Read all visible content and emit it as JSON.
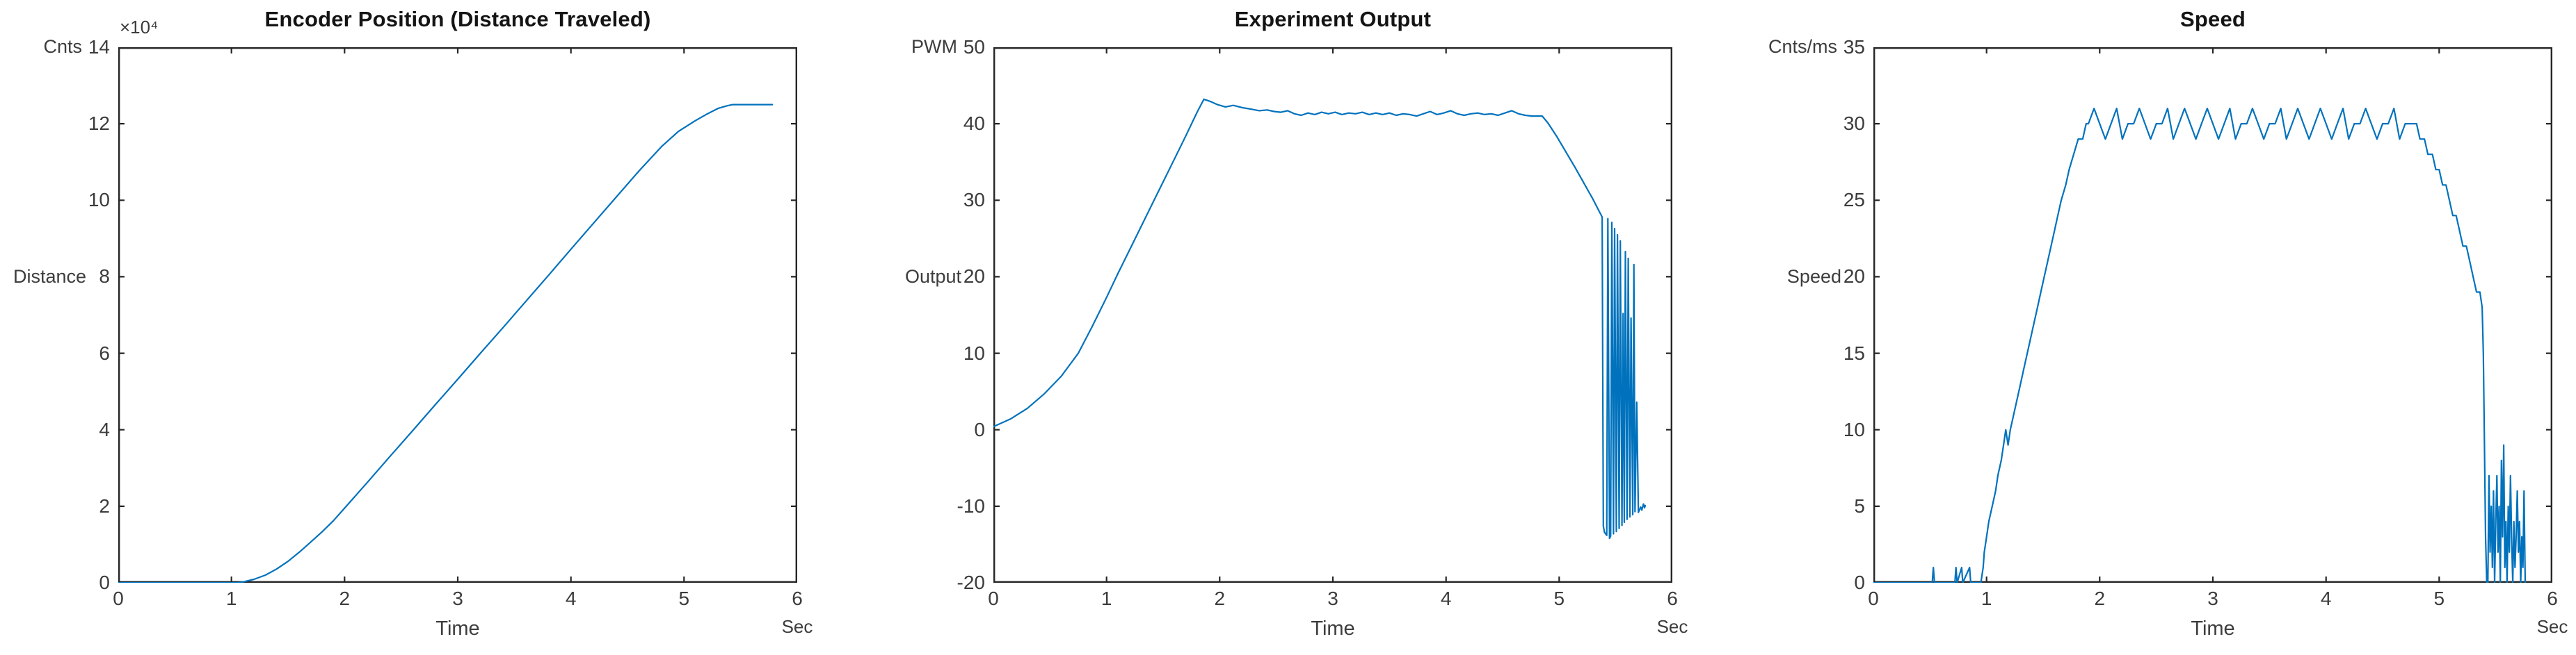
{
  "style": {
    "background": "#ffffff",
    "axis_color": "#262626",
    "tick_text_color": "#3c3c3c",
    "label_text_color": "#3d3d3d",
    "title_color": "#141414",
    "line_color": "#0072BD"
  },
  "chart_data": [
    {
      "type": "line",
      "title": "Encoder Position (Distance Traveled)",
      "y_unit_label": "Cnts",
      "y_axis_label": "Distance",
      "x_axis_label": "Time",
      "x_unit_label": "Sec",
      "exponent_label": "×10⁴",
      "line_color": "#0072BD",
      "xlim": [
        0,
        6
      ],
      "ylim": [
        0,
        14
      ],
      "x_ticks": [
        0,
        1,
        2,
        3,
        4,
        5,
        6
      ],
      "y_ticks": [
        0,
        2,
        4,
        6,
        8,
        10,
        12,
        14
      ],
      "grid": false,
      "y_values_unit": "counts x 10^4",
      "points": [
        [
          0,
          0
        ],
        [
          1.05,
          0
        ],
        [
          1.1,
          0.02
        ],
        [
          1.2,
          0.09
        ],
        [
          1.3,
          0.2
        ],
        [
          1.4,
          0.36
        ],
        [
          1.5,
          0.56
        ],
        [
          1.6,
          0.8
        ],
        [
          1.7,
          1.06
        ],
        [
          1.8,
          1.33
        ],
        [
          1.9,
          1.62
        ],
        [
          2,
          1.95
        ],
        [
          2.2,
          2.62
        ],
        [
          2.4,
          3.3
        ],
        [
          2.6,
          3.97
        ],
        [
          2.8,
          4.65
        ],
        [
          3,
          5.32
        ],
        [
          3.2,
          6
        ],
        [
          3.4,
          6.67
        ],
        [
          3.6,
          7.35
        ],
        [
          3.8,
          8.03
        ],
        [
          4,
          8.72
        ],
        [
          4.2,
          9.4
        ],
        [
          4.4,
          10.08
        ],
        [
          4.6,
          10.76
        ],
        [
          4.8,
          11.4
        ],
        [
          4.95,
          11.8
        ],
        [
          5.1,
          12.08
        ],
        [
          5.2,
          12.25
        ],
        [
          5.3,
          12.4
        ],
        [
          5.38,
          12.47
        ],
        [
          5.43,
          12.5
        ],
        [
          5.78,
          12.5
        ]
      ]
    },
    {
      "type": "line",
      "title": "Experiment Output",
      "y_unit_label": "PWM",
      "y_axis_label": "Output",
      "x_axis_label": "Time",
      "x_unit_label": "Sec",
      "exponent_label": "",
      "line_color": "#0072BD",
      "xlim": [
        0,
        6
      ],
      "ylim": [
        -20,
        50
      ],
      "x_ticks": [
        0,
        1,
        2,
        3,
        4,
        5,
        6
      ],
      "y_ticks": [
        -20,
        -10,
        0,
        10,
        20,
        30,
        40,
        50
      ],
      "grid": false,
      "points": [
        [
          0,
          0.4
        ],
        [
          0.15,
          1.4
        ],
        [
          0.3,
          2.8
        ],
        [
          0.45,
          4.7
        ],
        [
          0.6,
          7
        ],
        [
          0.75,
          10
        ],
        [
          0.87,
          13.4
        ],
        [
          1,
          17.3
        ],
        [
          1.1,
          20.4
        ],
        [
          1.2,
          23.4
        ],
        [
          1.3,
          26.4
        ],
        [
          1.4,
          29.4
        ],
        [
          1.5,
          32.4
        ],
        [
          1.6,
          35.4
        ],
        [
          1.7,
          38.4
        ],
        [
          1.8,
          41.5
        ],
        [
          1.86,
          43.2
        ],
        [
          1.92,
          42.9
        ],
        [
          1.98,
          42.5
        ],
        [
          2.05,
          42.2
        ],
        [
          2.12,
          42.4
        ],
        [
          2.2,
          42.1
        ],
        [
          2.28,
          41.9
        ],
        [
          2.35,
          41.7
        ],
        [
          2.42,
          41.8
        ],
        [
          2.48,
          41.6
        ],
        [
          2.54,
          41.5
        ],
        [
          2.6,
          41.7
        ],
        [
          2.66,
          41.3
        ],
        [
          2.72,
          41.1
        ],
        [
          2.78,
          41.4
        ],
        [
          2.84,
          41.2
        ],
        [
          2.9,
          41.5
        ],
        [
          2.96,
          41.3
        ],
        [
          3.02,
          41.5
        ],
        [
          3.08,
          41.2
        ],
        [
          3.14,
          41.4
        ],
        [
          3.2,
          41.3
        ],
        [
          3.26,
          41.5
        ],
        [
          3.32,
          41.2
        ],
        [
          3.38,
          41.4
        ],
        [
          3.44,
          41.2
        ],
        [
          3.5,
          41.4
        ],
        [
          3.56,
          41.1
        ],
        [
          3.62,
          41.3
        ],
        [
          3.68,
          41.2
        ],
        [
          3.74,
          41
        ],
        [
          3.8,
          41.3
        ],
        [
          3.86,
          41.6
        ],
        [
          3.92,
          41.2
        ],
        [
          3.98,
          41.4
        ],
        [
          4.04,
          41.7
        ],
        [
          4.1,
          41.3
        ],
        [
          4.16,
          41.1
        ],
        [
          4.22,
          41.3
        ],
        [
          4.28,
          41.4
        ],
        [
          4.34,
          41.2
        ],
        [
          4.4,
          41.3
        ],
        [
          4.46,
          41.1
        ],
        [
          4.52,
          41.4
        ],
        [
          4.58,
          41.7
        ],
        [
          4.64,
          41.3
        ],
        [
          4.7,
          41.1
        ],
        [
          4.76,
          41
        ],
        [
          4.85,
          41
        ],
        [
          4.9,
          40.1
        ],
        [
          4.98,
          38.3
        ],
        [
          5.06,
          36.3
        ],
        [
          5.14,
          34.3
        ],
        [
          5.22,
          32.2
        ],
        [
          5.3,
          30.1
        ],
        [
          5.38,
          27.8
        ],
        [
          5.39,
          -12.6
        ],
        [
          5.4,
          -13.4
        ],
        [
          5.42,
          -13.8
        ],
        [
          5.43,
          27.6
        ],
        [
          5.445,
          -14.2
        ],
        [
          5.455,
          -13.9
        ],
        [
          5.465,
          27.1
        ],
        [
          5.48,
          -13.6
        ],
        [
          5.49,
          26.3
        ],
        [
          5.505,
          -13.3
        ],
        [
          5.515,
          25.5
        ],
        [
          5.53,
          -12.9
        ],
        [
          5.54,
          24.7
        ],
        [
          5.555,
          -12.5
        ],
        [
          5.565,
          15.2
        ],
        [
          5.575,
          -12.1
        ],
        [
          5.585,
          23.3
        ],
        [
          5.6,
          -11.7
        ],
        [
          5.61,
          22.4
        ],
        [
          5.625,
          -11.4
        ],
        [
          5.635,
          14.6
        ],
        [
          5.65,
          -11.1
        ],
        [
          5.66,
          21.6
        ],
        [
          5.67,
          -10.7
        ],
        [
          5.685,
          3.6
        ],
        [
          5.7,
          -10.8
        ],
        [
          5.72,
          -10.1
        ],
        [
          5.73,
          -10.5
        ],
        [
          5.745,
          -9.7
        ],
        [
          5.755,
          -10.2
        ],
        [
          5.76,
          -9.9
        ]
      ]
    },
    {
      "type": "line",
      "title": "Speed",
      "y_unit_label": "Cnts/ms",
      "y_axis_label": "Speed",
      "x_axis_label": "Time",
      "x_unit_label": "Sec",
      "exponent_label": "",
      "line_color": "#0072BD",
      "xlim": [
        0,
        6
      ],
      "ylim": [
        0,
        35
      ],
      "x_ticks": [
        0,
        1,
        2,
        3,
        4,
        5,
        6
      ],
      "y_ticks": [
        0,
        5,
        10,
        15,
        20,
        25,
        30,
        35
      ],
      "grid": false,
      "points": [
        [
          0,
          0
        ],
        [
          0.52,
          0
        ],
        [
          0.53,
          1
        ],
        [
          0.54,
          0
        ],
        [
          0.6,
          0
        ],
        [
          0.72,
          0
        ],
        [
          0.73,
          1
        ],
        [
          0.74,
          0
        ],
        [
          0.78,
          1
        ],
        [
          0.79,
          0
        ],
        [
          0.85,
          1
        ],
        [
          0.86,
          0
        ],
        [
          0.95,
          0
        ],
        [
          0.97,
          1
        ],
        [
          0.98,
          2
        ],
        [
          1,
          3
        ],
        [
          1.02,
          4
        ],
        [
          1.05,
          5
        ],
        [
          1.08,
          6
        ],
        [
          1.1,
          7
        ],
        [
          1.13,
          8
        ],
        [
          1.15,
          9
        ],
        [
          1.17,
          10
        ],
        [
          1.19,
          9
        ],
        [
          1.21,
          10
        ],
        [
          1.24,
          11
        ],
        [
          1.27,
          12
        ],
        [
          1.3,
          13
        ],
        [
          1.33,
          14
        ],
        [
          1.36,
          15
        ],
        [
          1.39,
          16
        ],
        [
          1.42,
          17
        ],
        [
          1.45,
          18
        ],
        [
          1.48,
          19
        ],
        [
          1.51,
          20
        ],
        [
          1.54,
          21
        ],
        [
          1.57,
          22
        ],
        [
          1.6,
          23
        ],
        [
          1.63,
          24
        ],
        [
          1.66,
          25
        ],
        [
          1.7,
          26
        ],
        [
          1.73,
          27
        ],
        [
          1.77,
          28
        ],
        [
          1.81,
          29
        ],
        [
          1.85,
          29
        ],
        [
          1.88,
          30
        ],
        [
          1.9,
          30
        ],
        [
          1.95,
          31
        ],
        [
          2,
          30
        ],
        [
          2.05,
          29
        ],
        [
          2.1,
          30
        ],
        [
          2.15,
          31
        ],
        [
          2.2,
          29
        ],
        [
          2.25,
          30
        ],
        [
          2.3,
          30
        ],
        [
          2.35,
          31
        ],
        [
          2.4,
          30
        ],
        [
          2.45,
          29
        ],
        [
          2.5,
          30
        ],
        [
          2.55,
          30
        ],
        [
          2.6,
          31
        ],
        [
          2.65,
          29
        ],
        [
          2.7,
          30
        ],
        [
          2.75,
          31
        ],
        [
          2.8,
          30
        ],
        [
          2.85,
          29
        ],
        [
          2.9,
          30
        ],
        [
          2.95,
          31
        ],
        [
          3,
          30
        ],
        [
          3.05,
          29
        ],
        [
          3.1,
          30
        ],
        [
          3.15,
          31
        ],
        [
          3.2,
          29
        ],
        [
          3.25,
          30
        ],
        [
          3.3,
          30
        ],
        [
          3.35,
          31
        ],
        [
          3.4,
          30
        ],
        [
          3.45,
          29
        ],
        [
          3.5,
          30
        ],
        [
          3.55,
          30
        ],
        [
          3.6,
          31
        ],
        [
          3.65,
          29
        ],
        [
          3.7,
          30
        ],
        [
          3.75,
          31
        ],
        [
          3.8,
          30
        ],
        [
          3.85,
          29
        ],
        [
          3.9,
          30
        ],
        [
          3.95,
          31
        ],
        [
          4,
          30
        ],
        [
          4.05,
          29
        ],
        [
          4.1,
          30
        ],
        [
          4.15,
          31
        ],
        [
          4.2,
          29
        ],
        [
          4.25,
          30
        ],
        [
          4.3,
          30
        ],
        [
          4.35,
          31
        ],
        [
          4.4,
          30
        ],
        [
          4.45,
          29
        ],
        [
          4.5,
          30
        ],
        [
          4.55,
          30
        ],
        [
          4.6,
          31
        ],
        [
          4.65,
          29
        ],
        [
          4.7,
          30
        ],
        [
          4.75,
          30
        ],
        [
          4.8,
          30
        ],
        [
          4.83,
          29
        ],
        [
          4.87,
          29
        ],
        [
          4.9,
          28
        ],
        [
          4.94,
          28
        ],
        [
          4.97,
          27
        ],
        [
          5,
          27
        ],
        [
          5.03,
          26
        ],
        [
          5.06,
          26
        ],
        [
          5.09,
          25
        ],
        [
          5.12,
          24
        ],
        [
          5.15,
          24
        ],
        [
          5.18,
          23
        ],
        [
          5.21,
          22
        ],
        [
          5.24,
          22
        ],
        [
          5.27,
          21
        ],
        [
          5.3,
          20
        ],
        [
          5.33,
          19
        ],
        [
          5.36,
          19
        ],
        [
          5.38,
          18
        ],
        [
          5.39,
          15
        ],
        [
          5.4,
          9
        ],
        [
          5.41,
          3
        ],
        [
          5.42,
          0
        ],
        [
          5.43,
          0
        ],
        [
          5.44,
          7
        ],
        [
          5.45,
          2
        ],
        [
          5.46,
          5
        ],
        [
          5.47,
          1
        ],
        [
          5.48,
          6
        ],
        [
          5.49,
          0
        ],
        [
          5.5,
          4
        ],
        [
          5.51,
          7
        ],
        [
          5.52,
          2
        ],
        [
          5.53,
          5
        ],
        [
          5.54,
          0
        ],
        [
          5.55,
          8
        ],
        [
          5.56,
          3
        ],
        [
          5.57,
          9
        ],
        [
          5.58,
          1
        ],
        [
          5.59,
          4
        ],
        [
          5.6,
          0
        ],
        [
          5.61,
          5
        ],
        [
          5.62,
          2
        ],
        [
          5.63,
          7
        ],
        [
          5.64,
          3
        ],
        [
          5.65,
          0
        ],
        [
          5.66,
          4
        ],
        [
          5.67,
          1
        ],
        [
          5.68,
          3
        ],
        [
          5.69,
          6
        ],
        [
          5.7,
          2
        ],
        [
          5.71,
          4
        ],
        [
          5.72,
          0
        ],
        [
          5.73,
          3
        ],
        [
          5.74,
          1
        ],
        [
          5.75,
          6
        ],
        [
          5.76,
          0
        ]
      ]
    }
  ]
}
